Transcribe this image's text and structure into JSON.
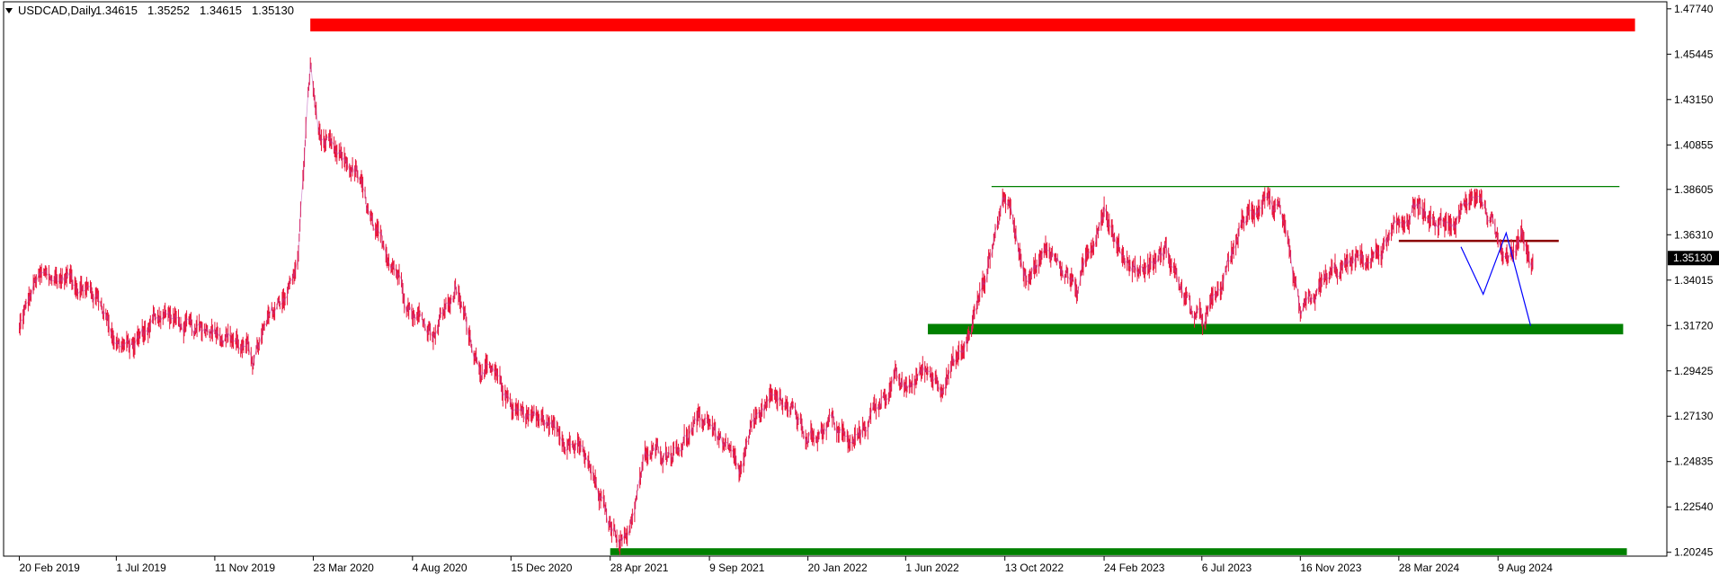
{
  "chart_data": {
    "type": "line",
    "symbol": "USDCAD,Daily",
    "ohlc": {
      "open": "1.34615",
      "high": "1.35252",
      "low": "1.34615",
      "close": "1.35130"
    },
    "current_price_label": "1.35130",
    "y_ticks": [
      "1.47740",
      "1.45445",
      "1.43150",
      "1.40855",
      "1.38605",
      "1.36310",
      "1.34015",
      "1.31720",
      "1.29425",
      "1.27130",
      "1.24835",
      "1.22540",
      "1.20245"
    ],
    "x_ticks": [
      "20 Feb 2019",
      "1 Jul 2019",
      "11 Nov 2019",
      "23 Mar 2020",
      "4 Aug 2020",
      "15 Dec 2020",
      "28 Apr 2021",
      "9 Sep 2021",
      "20 Jan 2022",
      "1 Jun 2022",
      "13 Oct 2022",
      "24 Feb 2023",
      "6 Jul 2023",
      "16 Nov 2023",
      "28 Mar 2024",
      "9 Aug 2024"
    ],
    "ylim": [
      1.2005,
      1.4805
    ],
    "series": [
      {
        "color": "#e8173c",
        "x": [
          "2019-02-20",
          "2019-03-15",
          "2019-05-01",
          "2019-06-10",
          "2019-07-01",
          "2019-07-20",
          "2019-09-01",
          "2019-10-15",
          "2019-11-11",
          "2019-12-10",
          "2020-01-01",
          "2020-02-01",
          "2020-03-01",
          "2020-03-19",
          "2020-03-30",
          "2020-04-20",
          "2020-05-20",
          "2020-06-15",
          "2020-07-10",
          "2020-08-04",
          "2020-09-01",
          "2020-10-01",
          "2020-11-01",
          "2020-12-15",
          "2021-01-20",
          "2021-02-25",
          "2021-03-25",
          "2021-04-28",
          "2021-05-20",
          "2021-06-15",
          "2021-07-20",
          "2021-08-20",
          "2021-09-09",
          "2021-10-20",
          "2021-11-15",
          "2021-12-20",
          "2022-01-20",
          "2022-02-20",
          "2022-03-20",
          "2022-04-20",
          "2022-05-15",
          "2022-06-01",
          "2022-06-25",
          "2022-07-20",
          "2022-08-20",
          "2022-09-15",
          "2022-10-13",
          "2022-11-10",
          "2022-12-15",
          "2023-01-20",
          "2023-02-24",
          "2023-03-15",
          "2023-04-15",
          "2023-05-20",
          "2023-06-20",
          "2023-07-06",
          "2023-08-01",
          "2023-08-25",
          "2023-10-01",
          "2023-10-20",
          "2023-11-16",
          "2023-12-20",
          "2024-01-20",
          "2024-02-25",
          "2024-03-28",
          "2024-04-20",
          "2024-05-15",
          "2024-06-15",
          "2024-07-15",
          "2024-08-05",
          "2024-08-09",
          "2024-08-25",
          "2024-09-10",
          "2024-09-25"
        ],
        "values": [
          1.315,
          1.34,
          1.342,
          1.33,
          1.31,
          1.305,
          1.325,
          1.312,
          1.318,
          1.31,
          1.3,
          1.325,
          1.345,
          1.448,
          1.415,
          1.402,
          1.395,
          1.36,
          1.35,
          1.325,
          1.315,
          1.335,
          1.3,
          1.278,
          1.27,
          1.263,
          1.25,
          1.215,
          1.21,
          1.25,
          1.255,
          1.265,
          1.27,
          1.24,
          1.275,
          1.28,
          1.26,
          1.27,
          1.255,
          1.275,
          1.29,
          1.283,
          1.295,
          1.29,
          1.305,
          1.34,
          1.385,
          1.345,
          1.355,
          1.335,
          1.38,
          1.355,
          1.345,
          1.355,
          1.325,
          1.318,
          1.335,
          1.365,
          1.385,
          1.372,
          1.32,
          1.34,
          1.348,
          1.352,
          1.365,
          1.38,
          1.365,
          1.37,
          1.385,
          1.365,
          1.36,
          1.355,
          1.362,
          1.35
        ]
      }
    ],
    "shapes": [
      {
        "kind": "zone",
        "color": "#ff0000",
        "x_start": "2020-03-19",
        "x_end": "2025-02-10",
        "y_top": 1.4725,
        "y_bottom": 1.466
      },
      {
        "kind": "zone",
        "color": "#008000",
        "x_start": "2022-07-01",
        "x_end": "2025-01-25",
        "y_top": 1.318,
        "y_bottom": 1.3127
      },
      {
        "kind": "zone",
        "color": "#008000",
        "x_start": "2021-04-28",
        "x_end": "2025-01-30",
        "y_top": 1.2045,
        "y_bottom": 1.201
      },
      {
        "kind": "hline",
        "color": "#008000",
        "x_start": "2022-09-25",
        "x_end": "2025-01-20",
        "y": 1.3875
      },
      {
        "kind": "hline",
        "color": "#8b0000",
        "x_start": "2024-03-28",
        "x_end": "2024-10-30",
        "y": 1.36
      },
      {
        "kind": "path",
        "color": "#0000ff",
        "points": [
          [
            "2024-06-20",
            1.357
          ],
          [
            "2024-07-20",
            1.333
          ],
          [
            "2024-08-20",
            1.364
          ],
          [
            "2024-09-22",
            1.317
          ]
        ]
      }
    ]
  }
}
